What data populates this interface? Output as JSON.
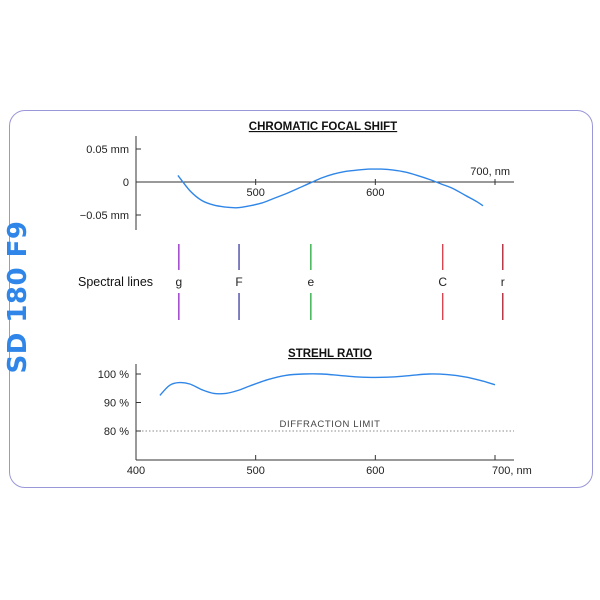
{
  "side_title": "SD 180 F9",
  "colors": {
    "frame": "#9a97d8",
    "title": "#2f86e8",
    "curve": "#2f86e8",
    "axis": "#333333"
  },
  "chart_data": [
    {
      "type": "line",
      "title": "CHROMATIC FOCAL SHIFT",
      "x_unit_label": "700, nm",
      "x_ticks": [
        500,
        600,
        700
      ],
      "y_tick_labels": [
        "0.05 mm",
        "0",
        "−0.05 mm"
      ],
      "y_ticks": [
        0.05,
        0,
        -0.05
      ],
      "xlim": [
        400,
        715
      ],
      "ylim": [
        -0.05,
        0.05
      ],
      "grid": false,
      "series": [
        {
          "color": "#2f86e8",
          "x": [
            435,
            445,
            455,
            465,
            475,
            485,
            495,
            505,
            515,
            525,
            535,
            545,
            555,
            565,
            575,
            585,
            595,
            605,
            615,
            625,
            635,
            645,
            655,
            665,
            675,
            685,
            690
          ],
          "y": [
            0.01,
            -0.013,
            -0.028,
            -0.035,
            -0.038,
            -0.039,
            -0.036,
            -0.032,
            -0.025,
            -0.018,
            -0.01,
            -0.002,
            0.006,
            0.012,
            0.016,
            0.018,
            0.0195,
            0.0195,
            0.018,
            0.015,
            0.01,
            0.004,
            -0.003,
            -0.01,
            -0.02,
            -0.03,
            -0.036
          ]
        }
      ]
    },
    {
      "type": "spectral_lines",
      "label": "Spectral lines",
      "lines": [
        {
          "name": "g",
          "wavelength": 435.8,
          "color": "#9933cc"
        },
        {
          "name": "F",
          "wavelength": 486.1,
          "color": "#4a4aa8"
        },
        {
          "name": "e",
          "wavelength": 546.1,
          "color": "#33b04a"
        },
        {
          "name": "C",
          "wavelength": 656.3,
          "color": "#d64550"
        },
        {
          "name": "r",
          "wavelength": 706.5,
          "color": "#b02a38"
        }
      ]
    },
    {
      "type": "line",
      "title": "STREHL RATIO",
      "x_unit_label": "700, nm",
      "x_ticks": [
        400,
        500,
        600,
        700
      ],
      "x_tick_labels": [
        "400",
        "500",
        "600",
        "700, nm"
      ],
      "y_ticks": [
        100,
        90,
        80
      ],
      "y_tick_labels": [
        "100 %",
        "90 %",
        "80 %"
      ],
      "xlim": [
        400,
        715
      ],
      "ylim": [
        72,
        103
      ],
      "grid": false,
      "reference_line": {
        "value": 80,
        "label": "DIFFRACTION  LIMIT",
        "style": "dotted"
      },
      "series": [
        {
          "color": "#2f86e8",
          "x": [
            420,
            428,
            436,
            445,
            455,
            465,
            475,
            485,
            495,
            510,
            525,
            540,
            555,
            570,
            585,
            600,
            615,
            630,
            645,
            660,
            675,
            690,
            700
          ],
          "y": [
            92.5,
            96,
            97,
            96.5,
            94.5,
            93.2,
            93.2,
            94.2,
            95.8,
            98,
            99.5,
            100,
            100,
            99.5,
            99,
            98.8,
            99,
            99.5,
            100,
            99.8,
            99,
            97.5,
            96.2
          ]
        }
      ]
    }
  ]
}
